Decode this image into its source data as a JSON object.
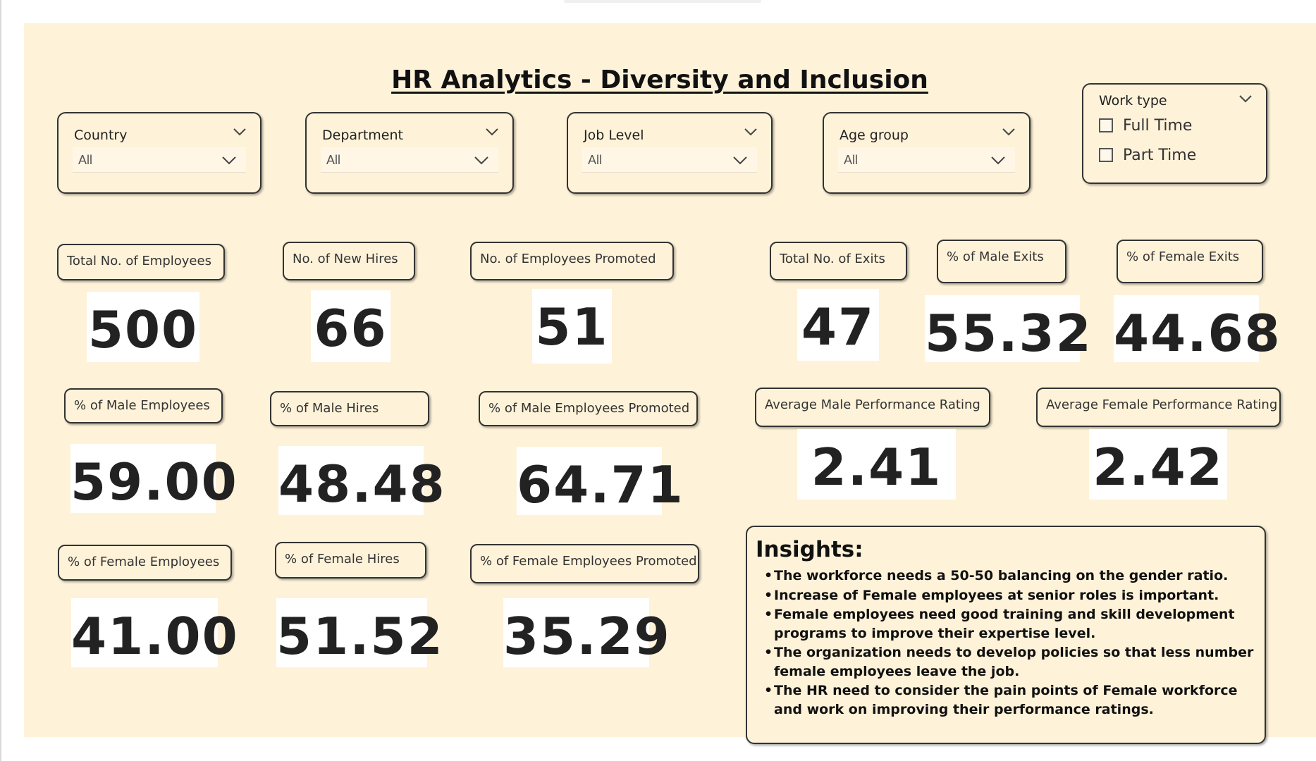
{
  "dashboard": {
    "title": "HR Analytics - Diversity and Inclusion"
  },
  "filters": {
    "country": {
      "title": "Country",
      "value": "All"
    },
    "department": {
      "title": "Department",
      "value": "All"
    },
    "job_level": {
      "title": "Job Level",
      "value": "All"
    },
    "age_group": {
      "title": "Age group",
      "value": "All"
    },
    "work_type": {
      "title": "Work type",
      "options": [
        {
          "label": "Full Time",
          "checked": false
        },
        {
          "label": "Part Time",
          "checked": false
        }
      ]
    }
  },
  "kpis": {
    "total_employees": {
      "label": "Total No. of Employees",
      "value": "500"
    },
    "new_hires": {
      "label": "No. of New Hires",
      "value": "66"
    },
    "employees_promoted": {
      "label": "No. of Employees Promoted",
      "value": "51"
    },
    "total_exits": {
      "label": "Total No. of Exits",
      "value": "47"
    },
    "male_exits_pct": {
      "label": "% of Male Exits",
      "value": "55.32"
    },
    "female_exits_pct": {
      "label": "% of Female Exits",
      "value": "44.68"
    },
    "male_employees_pct": {
      "label": "% of Male Employees",
      "value": "59.00"
    },
    "male_hires_pct": {
      "label": "% of Male Hires",
      "value": "48.48"
    },
    "male_promoted_pct": {
      "label": "% of Male Employees Promoted",
      "value": "64.71"
    },
    "avg_male_rating": {
      "label": "Average Male Performance Rating",
      "value": "2.41"
    },
    "avg_female_rating": {
      "label": "Average Female Performance Rating",
      "value": "2.42"
    },
    "female_employees_pct": {
      "label": "% of Female Employees",
      "value": "41.00"
    },
    "female_hires_pct": {
      "label": "% of Female Hires",
      "value": "51.52"
    },
    "female_promoted_pct": {
      "label": "% of Female Employees Promoted",
      "value": "35.29"
    }
  },
  "insights": {
    "title": "Insights:",
    "items": [
      "The workforce needs a 50-50 balancing on the gender ratio.",
      "Increase of Female employees at senior roles is important.",
      "Female employees need good training and skill development programs to improve their expertise level.",
      "The organization needs to develop policies so that less number female employees leave the job.",
      "The HR need to consider the pain points of Female workforce and work on improving their performance ratings."
    ]
  },
  "colors": {
    "canvas_background": "#fef2d9",
    "card_border": "#333333",
    "value_background": "#ffffff",
    "text": "#222222"
  }
}
